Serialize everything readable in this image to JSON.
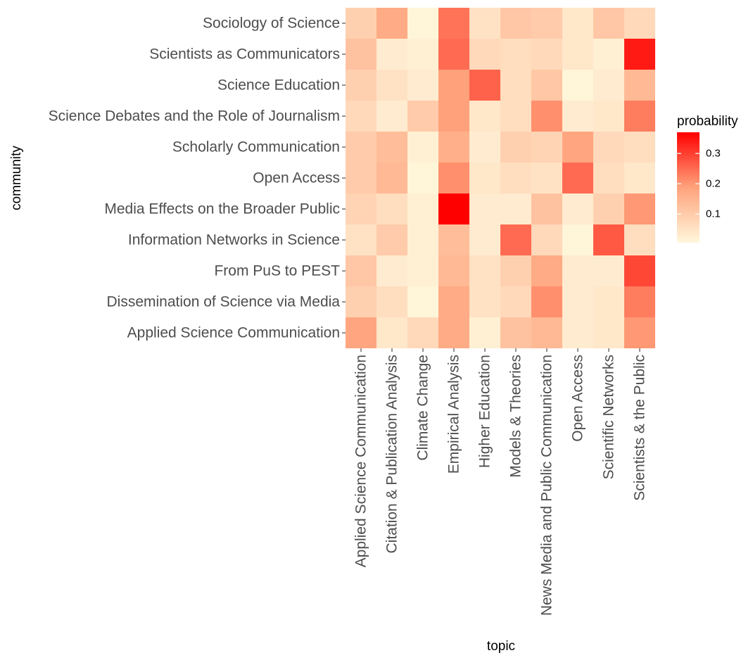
{
  "chart_data": {
    "type": "heatmap",
    "xlabel": "topic",
    "ylabel": "community",
    "x_categories": [
      "Applied Science Communication",
      "Citation & Publication Analysis",
      "Climate Change",
      "Empirical Analysis",
      "Higher Education",
      "Models & Theories",
      "News Media and Public Communication",
      "Open Access",
      "Scientific Networks",
      "Scientists & the Public"
    ],
    "y_categories": [
      "Sociology of Science",
      "Scientists as Communicators",
      "Science Education",
      "Science Debates and the Role of Journalism",
      "Scholarly Communication",
      "Open Access",
      "Media Effects on the Broader Public",
      "Information Networks in Science",
      "From PuS to PEST",
      "Dissemination of Science via Media",
      "Applied Science Communication"
    ],
    "values": [
      [
        0.09,
        0.17,
        0.01,
        0.24,
        0.05,
        0.11,
        0.1,
        0.04,
        0.11,
        0.07
      ],
      [
        0.12,
        0.03,
        0.02,
        0.25,
        0.07,
        0.06,
        0.07,
        0.04,
        0.02,
        0.34
      ],
      [
        0.09,
        0.05,
        0.03,
        0.19,
        0.26,
        0.06,
        0.11,
        0.01,
        0.03,
        0.14
      ],
      [
        0.07,
        0.03,
        0.1,
        0.19,
        0.04,
        0.06,
        0.21,
        0.03,
        0.04,
        0.23
      ],
      [
        0.1,
        0.13,
        0.02,
        0.16,
        0.03,
        0.09,
        0.08,
        0.18,
        0.07,
        0.06
      ],
      [
        0.1,
        0.14,
        0.01,
        0.21,
        0.04,
        0.06,
        0.05,
        0.25,
        0.06,
        0.04
      ],
      [
        0.08,
        0.06,
        0.02,
        0.37,
        0.03,
        0.03,
        0.12,
        0.03,
        0.09,
        0.2
      ],
      [
        0.05,
        0.1,
        0.02,
        0.13,
        0.03,
        0.25,
        0.07,
        0.01,
        0.27,
        0.06
      ],
      [
        0.11,
        0.03,
        0.02,
        0.14,
        0.05,
        0.09,
        0.17,
        0.03,
        0.03,
        0.29
      ],
      [
        0.09,
        0.06,
        0.01,
        0.17,
        0.05,
        0.07,
        0.21,
        0.03,
        0.04,
        0.23
      ],
      [
        0.18,
        0.04,
        0.07,
        0.17,
        0.02,
        0.12,
        0.14,
        0.03,
        0.04,
        0.2
      ]
    ],
    "legend": {
      "title": "probability",
      "ticks": [
        0.1,
        0.2,
        0.3
      ],
      "tick_labels": [
        "0.1",
        "0.2",
        "0.3"
      ],
      "min": 0.005,
      "max": 0.37,
      "placement": "right"
    },
    "colors": {
      "low": "#fff7dc",
      "mid": "#ffa37c",
      "high": "#ff0000",
      "tick_color": "#4d4d4d"
    },
    "grid": false
  }
}
